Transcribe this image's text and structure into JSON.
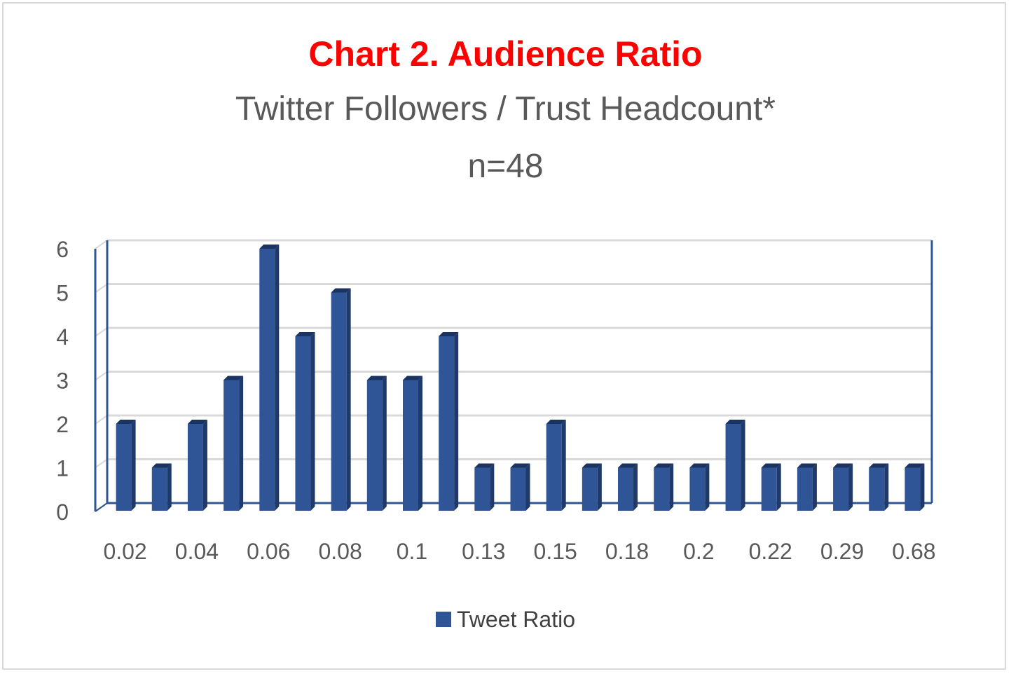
{
  "title": "Chart 2. Audience Ratio",
  "subtitle": "Twitter Followers / Trust Headcount*",
  "note": "n=48",
  "chart_data": {
    "type": "bar",
    "categories": [
      "0.02",
      "",
      "0.04",
      "",
      "0.06",
      "",
      "0.08",
      "",
      "0.1",
      "",
      "0.13",
      "",
      "0.15",
      "",
      "0.18",
      "",
      "0.2",
      "",
      "0.22",
      "",
      "0.29",
      "",
      "0.68"
    ],
    "series": [
      {
        "name": "Tweet Ratio",
        "values": [
          2,
          1,
          2,
          3,
          6,
          4,
          5,
          3,
          3,
          4,
          1,
          1,
          2,
          1,
          1,
          1,
          1,
          2,
          1,
          1,
          1,
          1,
          1
        ]
      }
    ],
    "ylim": [
      0,
      6
    ],
    "yticks": [
      0,
      1,
      2,
      3,
      4,
      5,
      6
    ],
    "xlabel": "",
    "ylabel": "",
    "grid": true,
    "legend": "bottom",
    "colors": {
      "bar": "#2f5597",
      "bar_side": "#1f3a68",
      "bar_top": "#1a3360",
      "axis": "#2f5597",
      "grid": "#d9d9d9"
    }
  }
}
